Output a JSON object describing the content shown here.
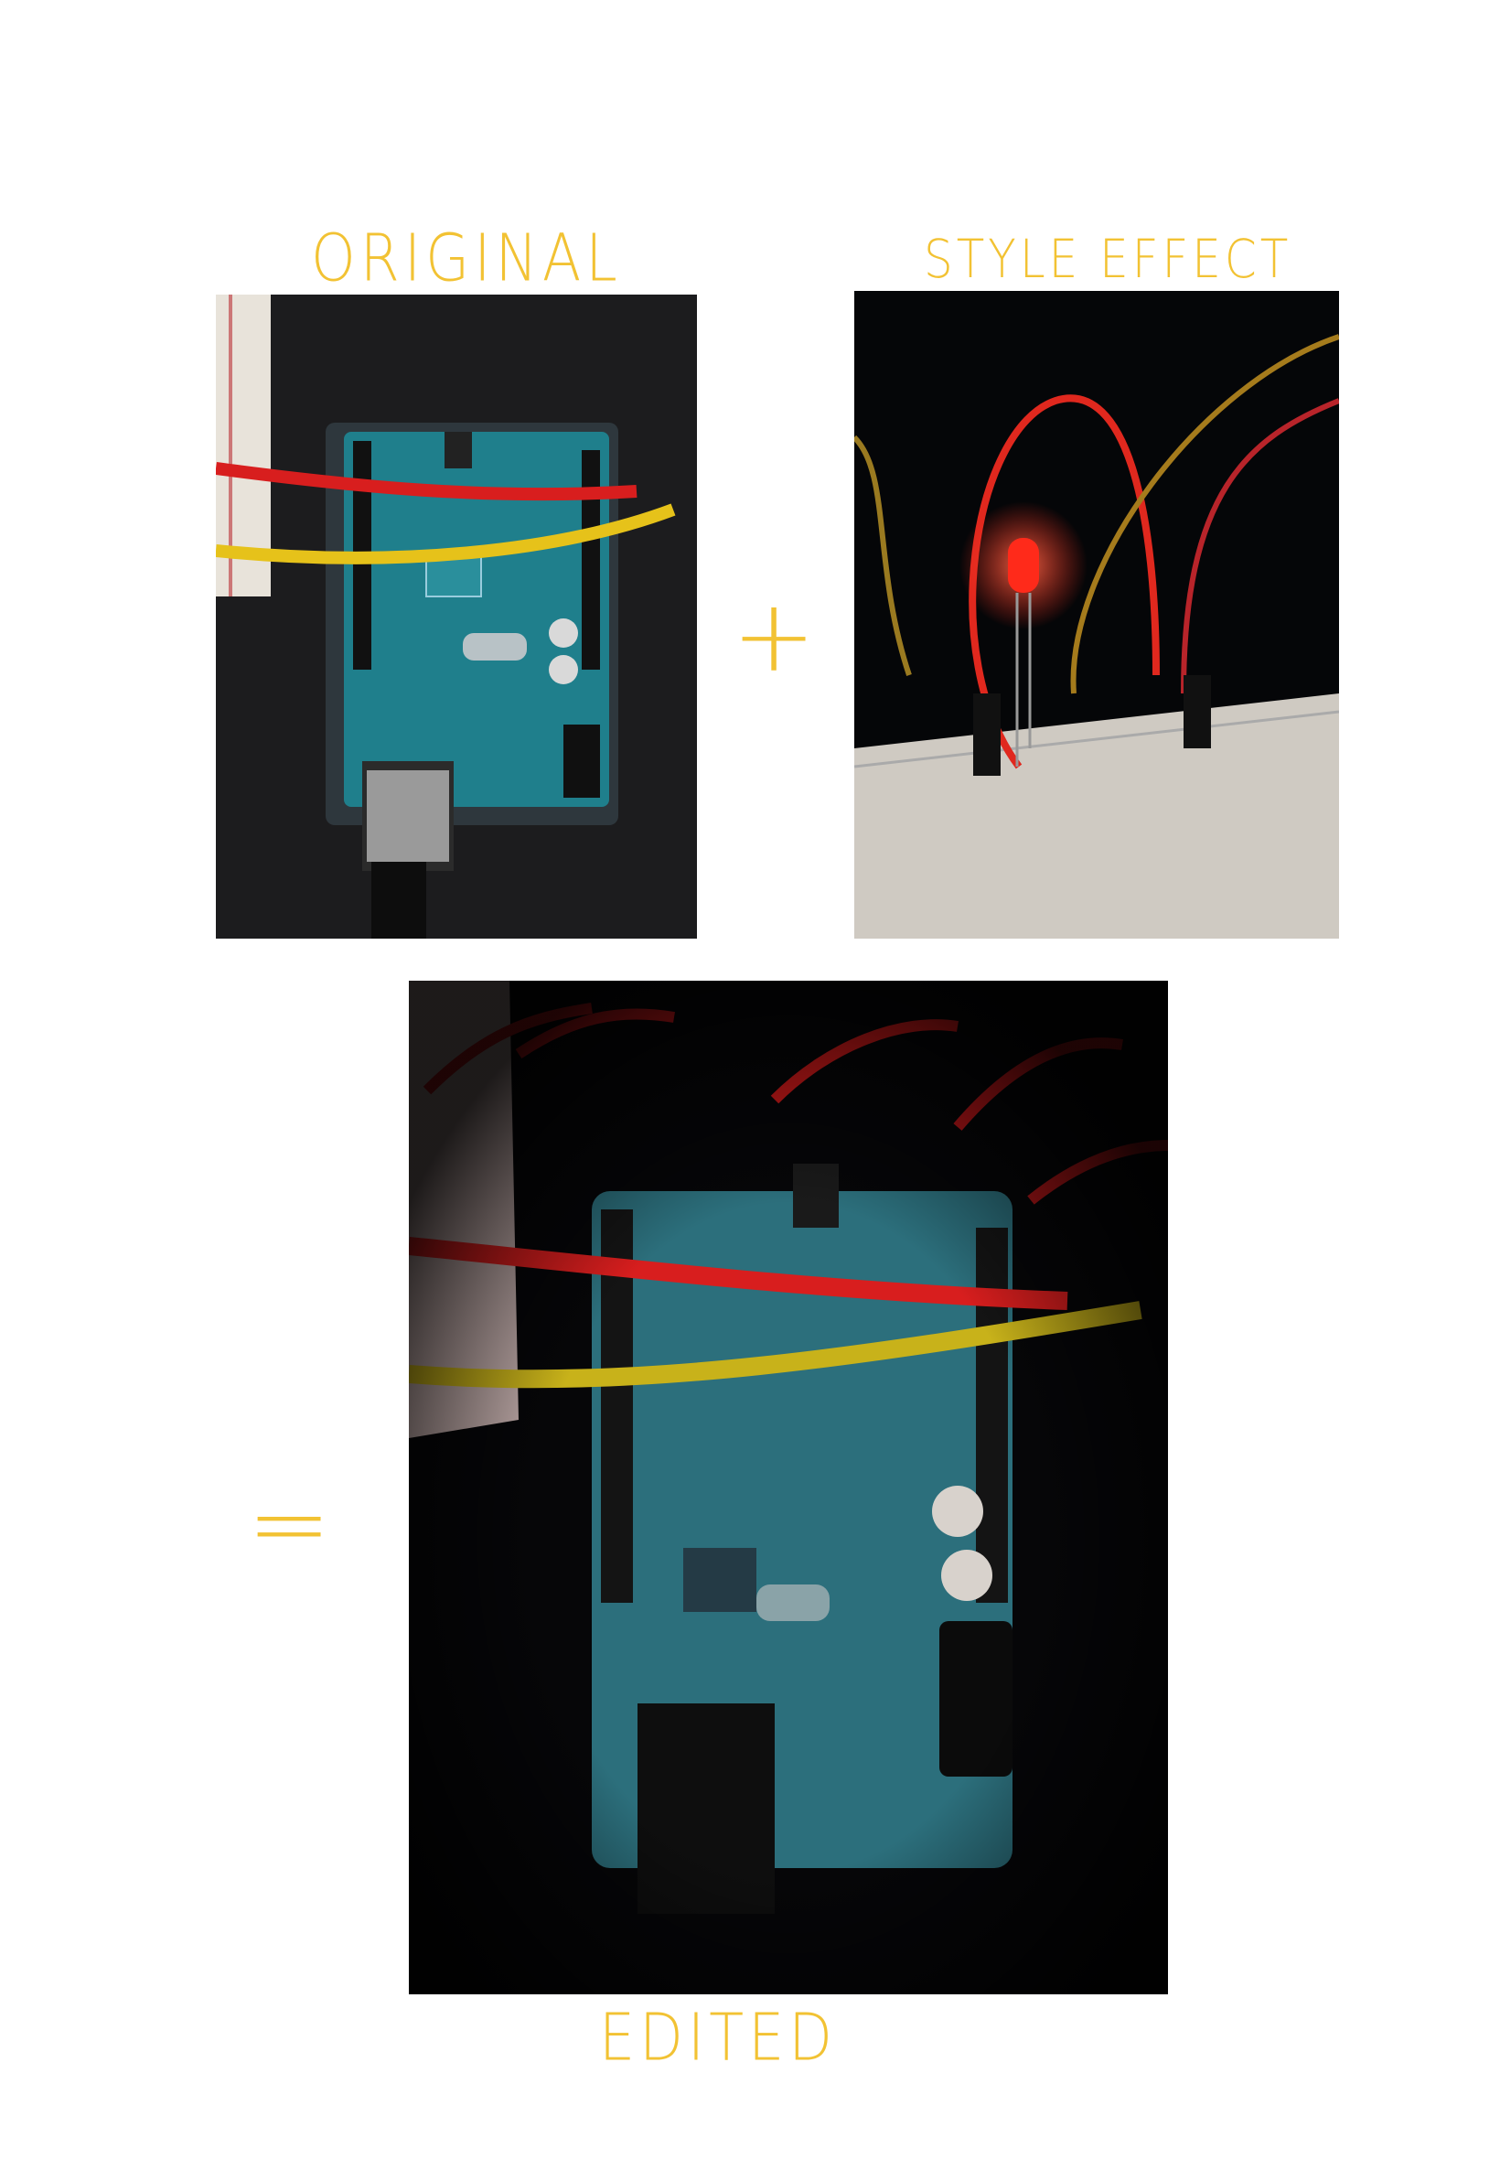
{
  "labels": {
    "original": "ORIGINAL",
    "style_effect": "STYLE EFFECT",
    "edited": "EDITED"
  },
  "operators": {
    "plus": "+",
    "equals": "="
  },
  "colors": {
    "handwriting": "#f2c233",
    "board_teal": "#1f7f8c",
    "wire_red": "#d81e1e",
    "wire_yellow": "#e6c21a",
    "led_red": "#ff2a1a"
  }
}
